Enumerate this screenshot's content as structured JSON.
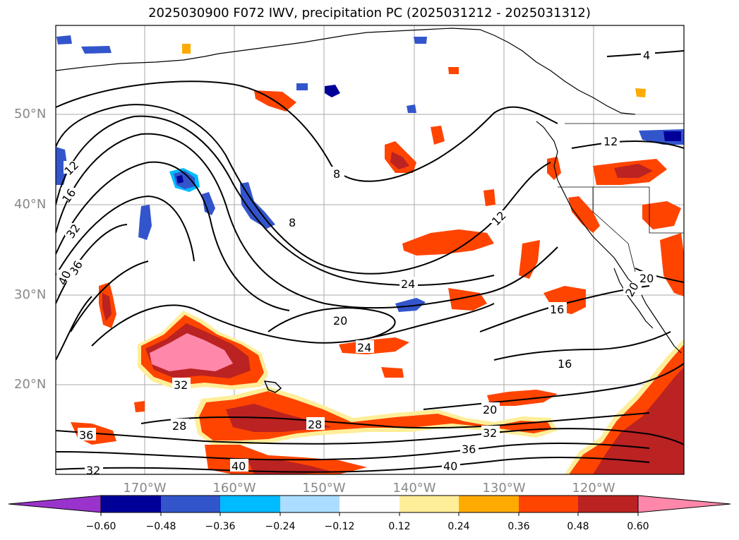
{
  "title": "2025030900 F072 IWV, precipitation PC (2025031212 - 2025031312)",
  "map": {
    "lat_labels": [
      "50°N",
      "40°N",
      "30°N",
      "20°N"
    ],
    "lon_labels": [
      "170°W",
      "160°W",
      "150°W",
      "140°W",
      "130°W",
      "120°W"
    ],
    "contour_labels": [
      "4",
      "12",
      "12",
      "16",
      "32",
      "36",
      "40",
      "8",
      "8",
      "12",
      "24",
      "20",
      "24",
      "16",
      "16",
      "20",
      "32",
      "36",
      "40",
      "28",
      "28",
      "32",
      "36",
      "32",
      "40",
      "20",
      "20"
    ]
  },
  "colorbar": {
    "tick_labels": [
      "−0.60",
      "−0.48",
      "−0.36",
      "−0.24",
      "−0.12",
      "0.12",
      "0.24",
      "0.36",
      "0.48",
      "0.60"
    ],
    "colors": [
      "#9933cc",
      "#000099",
      "#3355cc",
      "#00bbff",
      "#aaddff",
      "#ffffff",
      "#ffee99",
      "#ffaa00",
      "#ff4400",
      "#bb2222",
      "#ff88aa"
    ]
  },
  "colors": {
    "precip_light": "#ffee99",
    "precip_orange": "#ffaa00",
    "precip_red": "#ff4400",
    "precip_dark": "#bb2222",
    "precip_pink": "#ff88aa",
    "neg_light": "#00bbff",
    "neg_mid": "#3355cc",
    "neg_dark": "#000099"
  }
}
